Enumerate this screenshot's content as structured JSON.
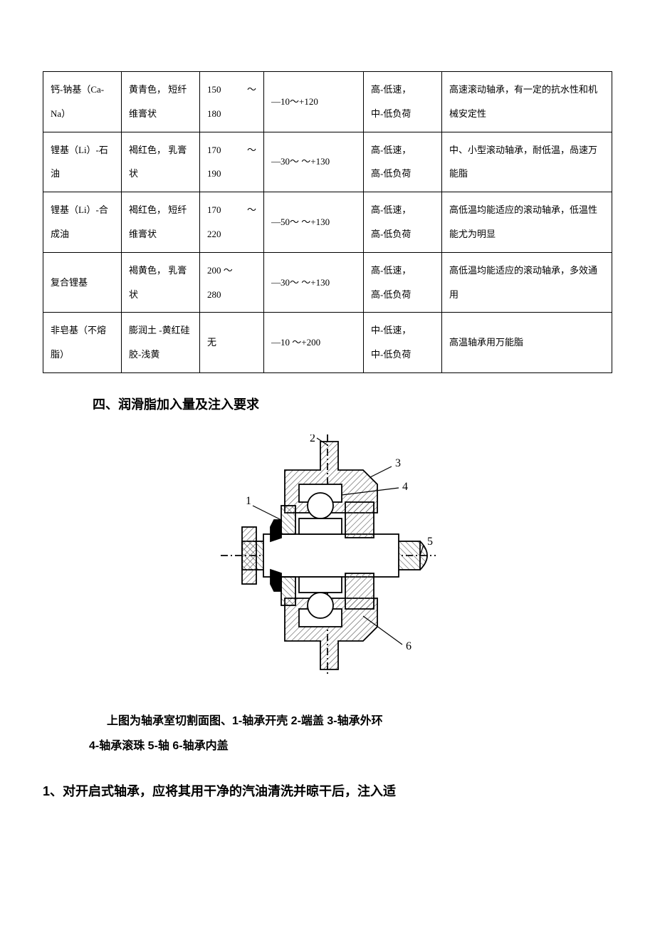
{
  "table": {
    "rows": [
      {
        "c1": "钙-钠基（Ca-Na）",
        "c2": "黄青色， 短纤维膏状",
        "c3a": "150",
        "c3b": "～",
        "c3c": "180",
        "c4": "—10～+120",
        "c5": "高-低速，\n中-低负荷",
        "c6": "高速滚动轴承，有一定的抗水性和机械安定性"
      },
      {
        "c1": "锂基（Li）-石油",
        "c2": "褐红色， 乳膏状",
        "c3a": "170",
        "c3b": "～",
        "c3c": "190",
        "c4": "—30～ ～+130",
        "c5": "高-低速，\n高-低负荷",
        "c6": "中、小型滚动轴承，耐低温，咼速万能脂"
      },
      {
        "c1": "锂基（Li）-合成油",
        "c2": "褐红色， 短纤维膏状",
        "c3a": "170",
        "c3b": "～",
        "c3c": "220",
        "c4": "—50～ ～+130",
        "c5": "高-低速，\n高-低负荷",
        "c6": "高低温均能适应的滚动轴承，低温性能尤为明显"
      },
      {
        "c1": "复合锂基",
        "c2": "褐黄色， 乳膏状",
        "c3a": "200 ～",
        "c3b": "",
        "c3c": "280",
        "c4": "—30～ ～+130",
        "c5": "高-低速，\n高-低负荷",
        "c6": "高低温均能适应的滚动轴承，多效通用"
      },
      {
        "c1": "非皂基（不熔脂）",
        "c2": "膨润土 -黄红硅胶-浅黄",
        "c3a": "无",
        "c3b": "",
        "c3c": "",
        "c4": "—10 ～+200",
        "c5": "中-低速，\n中-低负荷",
        "c6": "高温轴承用万能脂"
      }
    ]
  },
  "heading": "四、润滑脂加入量及注入要求",
  "diagram": {
    "labels": [
      "1",
      "2",
      "3",
      "4",
      "5",
      "6"
    ],
    "stroke": "#000000",
    "bg": "#ffffff",
    "hatch": "#555555"
  },
  "caption_line1": "上图为轴承室切割面图、1-轴承开壳  2-端盖  3-轴承外环",
  "caption_line2": "4-轴承滚珠    5-轴  6-轴承内盖",
  "body_text": "1、对开启式轴承，应将其用干净的汽油清洗并晾干后，注入适"
}
